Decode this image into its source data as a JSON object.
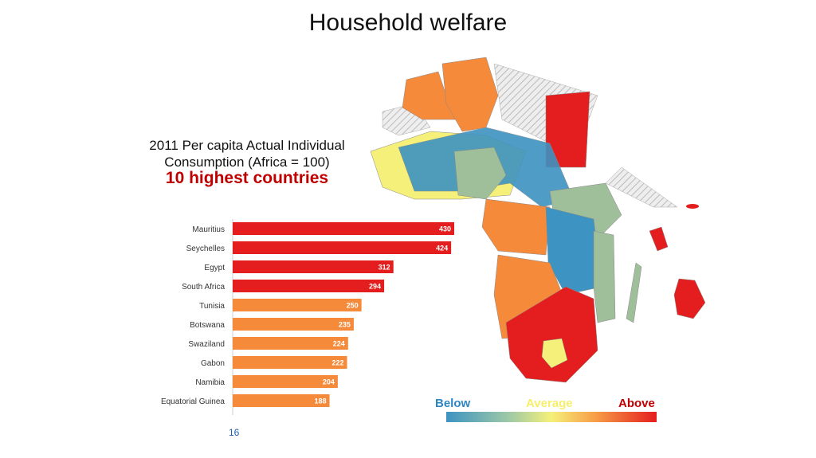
{
  "page": {
    "title": "Household welfare",
    "subtitle": "2011 Per capita Actual Individual Consumption (Africa = 100)",
    "highlight": "10 highest countries",
    "page_number": "16"
  },
  "legend": {
    "below": "Below",
    "average": "Average",
    "above": "Above"
  },
  "colors": {
    "above": "#e41e1e",
    "mid": "#f58a3a",
    "below": "#3d93c2",
    "average": "#f5f07a",
    "neutral": "#9fbf9a"
  },
  "chart_data": {
    "type": "bar",
    "orientation": "horizontal",
    "categories": [
      "Mauritius",
      "Seychelles",
      "Egypt",
      "South Africa",
      "Tunisia",
      "Botswana",
      "Swaziland",
      "Gabon",
      "Namibia",
      "Equatorial Guinea"
    ],
    "values": [
      430,
      424,
      312,
      294,
      250,
      235,
      224,
      222,
      204,
      188
    ],
    "bar_colors": [
      "#e41e1e",
      "#e41e1e",
      "#e41e1e",
      "#e41e1e",
      "#f58a3a",
      "#f58a3a",
      "#f58a3a",
      "#f58a3a",
      "#f58a3a",
      "#f58a3a"
    ],
    "xlim": [
      0,
      430
    ]
  }
}
